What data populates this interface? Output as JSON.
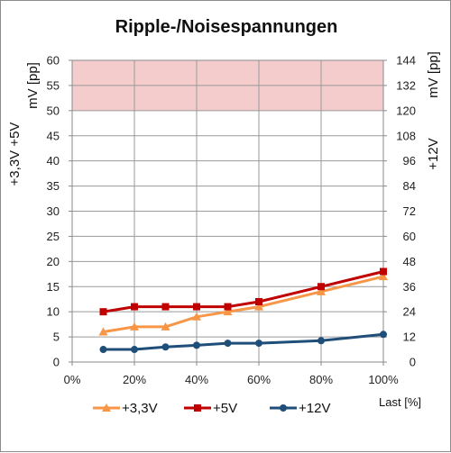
{
  "chart_data": {
    "type": "line",
    "title": "Ripple-/Noisespannungen",
    "xlabel": "Last [%]",
    "ylabel_left": [
      "+3,3V +5V",
      "mV [pp]"
    ],
    "ylabel_right": [
      "+12V",
      "mV [pp]"
    ],
    "x": [
      10,
      20,
      30,
      40,
      50,
      60,
      80,
      100
    ],
    "xlim": [
      0,
      100
    ],
    "x_ticks": [
      "0%",
      "20%",
      "40%",
      "60%",
      "80%",
      "100%"
    ],
    "ylim_left": [
      0,
      60
    ],
    "ylim_right": [
      0,
      144
    ],
    "y_ticks_left": [
      "0",
      "5",
      "10",
      "15",
      "20",
      "25",
      "30",
      "35",
      "40",
      "45",
      "50",
      "55",
      "60"
    ],
    "y_ticks_right": [
      "0",
      "12",
      "24",
      "36",
      "48",
      "60",
      "72",
      "84",
      "96",
      "108",
      "120",
      "132",
      "144"
    ],
    "limit_band_left": [
      50,
      60
    ],
    "grid": true,
    "legend": "bottom",
    "series": [
      {
        "name": "+3,3V",
        "axis": "left",
        "color": "#f79646",
        "marker": "triangle",
        "values": [
          6,
          7,
          7,
          9,
          10,
          11,
          14,
          17
        ]
      },
      {
        "name": "+5V",
        "axis": "left",
        "color": "#c00000",
        "marker": "square",
        "values": [
          10,
          11,
          11,
          11,
          11,
          12,
          15,
          18
        ]
      },
      {
        "name": "+12V",
        "axis": "right",
        "color": "#1f4e79",
        "marker": "circle",
        "values": [
          6,
          6,
          7.2,
          8,
          9,
          9,
          10.2,
          13.2
        ]
      }
    ],
    "band_color": "#f4cccc"
  }
}
